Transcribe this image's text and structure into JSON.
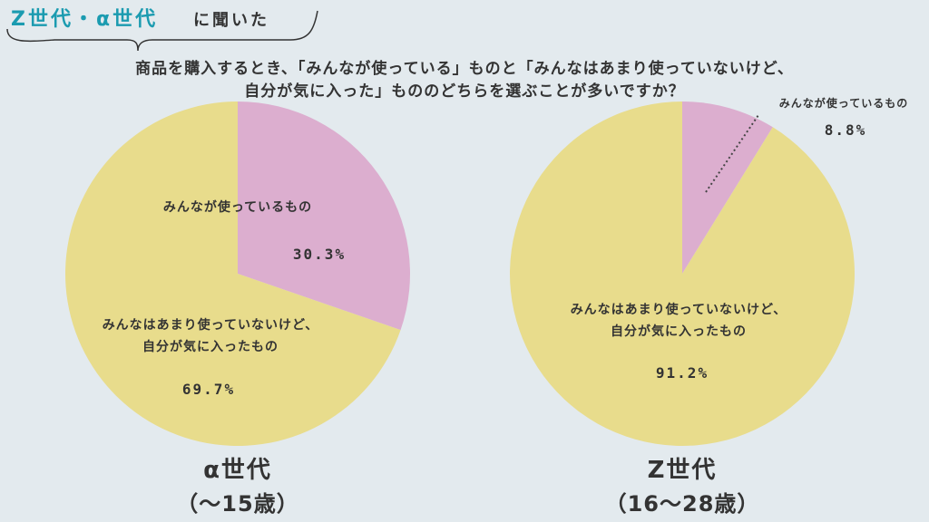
{
  "header": {
    "tag_accent": "Z世代・α世代",
    "tag_plain": "に聞いた",
    "accent_color": "#1b9bb0"
  },
  "question": {
    "line1": "商品を購入するとき、「みんなが使っている」ものと「みんなはあまり使っていないけど、",
    "line2": "自分が気に入った」もののどちらを選ぶことが多いですか？"
  },
  "chart_data": [
    {
      "type": "pie",
      "title": "α世代",
      "subtitle": "（〜15歳）",
      "slices": [
        {
          "label": "みんなが使っているもの",
          "value": 30.3,
          "value_label": "30.3%",
          "color": "#dcaecf"
        },
        {
          "label_lines": [
            "みんなはあまり使っていないけど、",
            "自分が気に入ったもの"
          ],
          "value": 69.7,
          "value_label": "69.7%",
          "color": "#e8dc8c"
        }
      ]
    },
    {
      "type": "pie",
      "title": "Z世代",
      "subtitle": "（16〜28歳）",
      "slices": [
        {
          "label": "みんなが使っているもの",
          "value": 8.8,
          "value_label": "8.8%",
          "color": "#dcaecf"
        },
        {
          "label_lines": [
            "みんなはあまり使っていないけど、",
            "自分が気に入ったもの"
          ],
          "value": 91.2,
          "value_label": "91.2%",
          "color": "#e8dc8c"
        }
      ]
    }
  ]
}
